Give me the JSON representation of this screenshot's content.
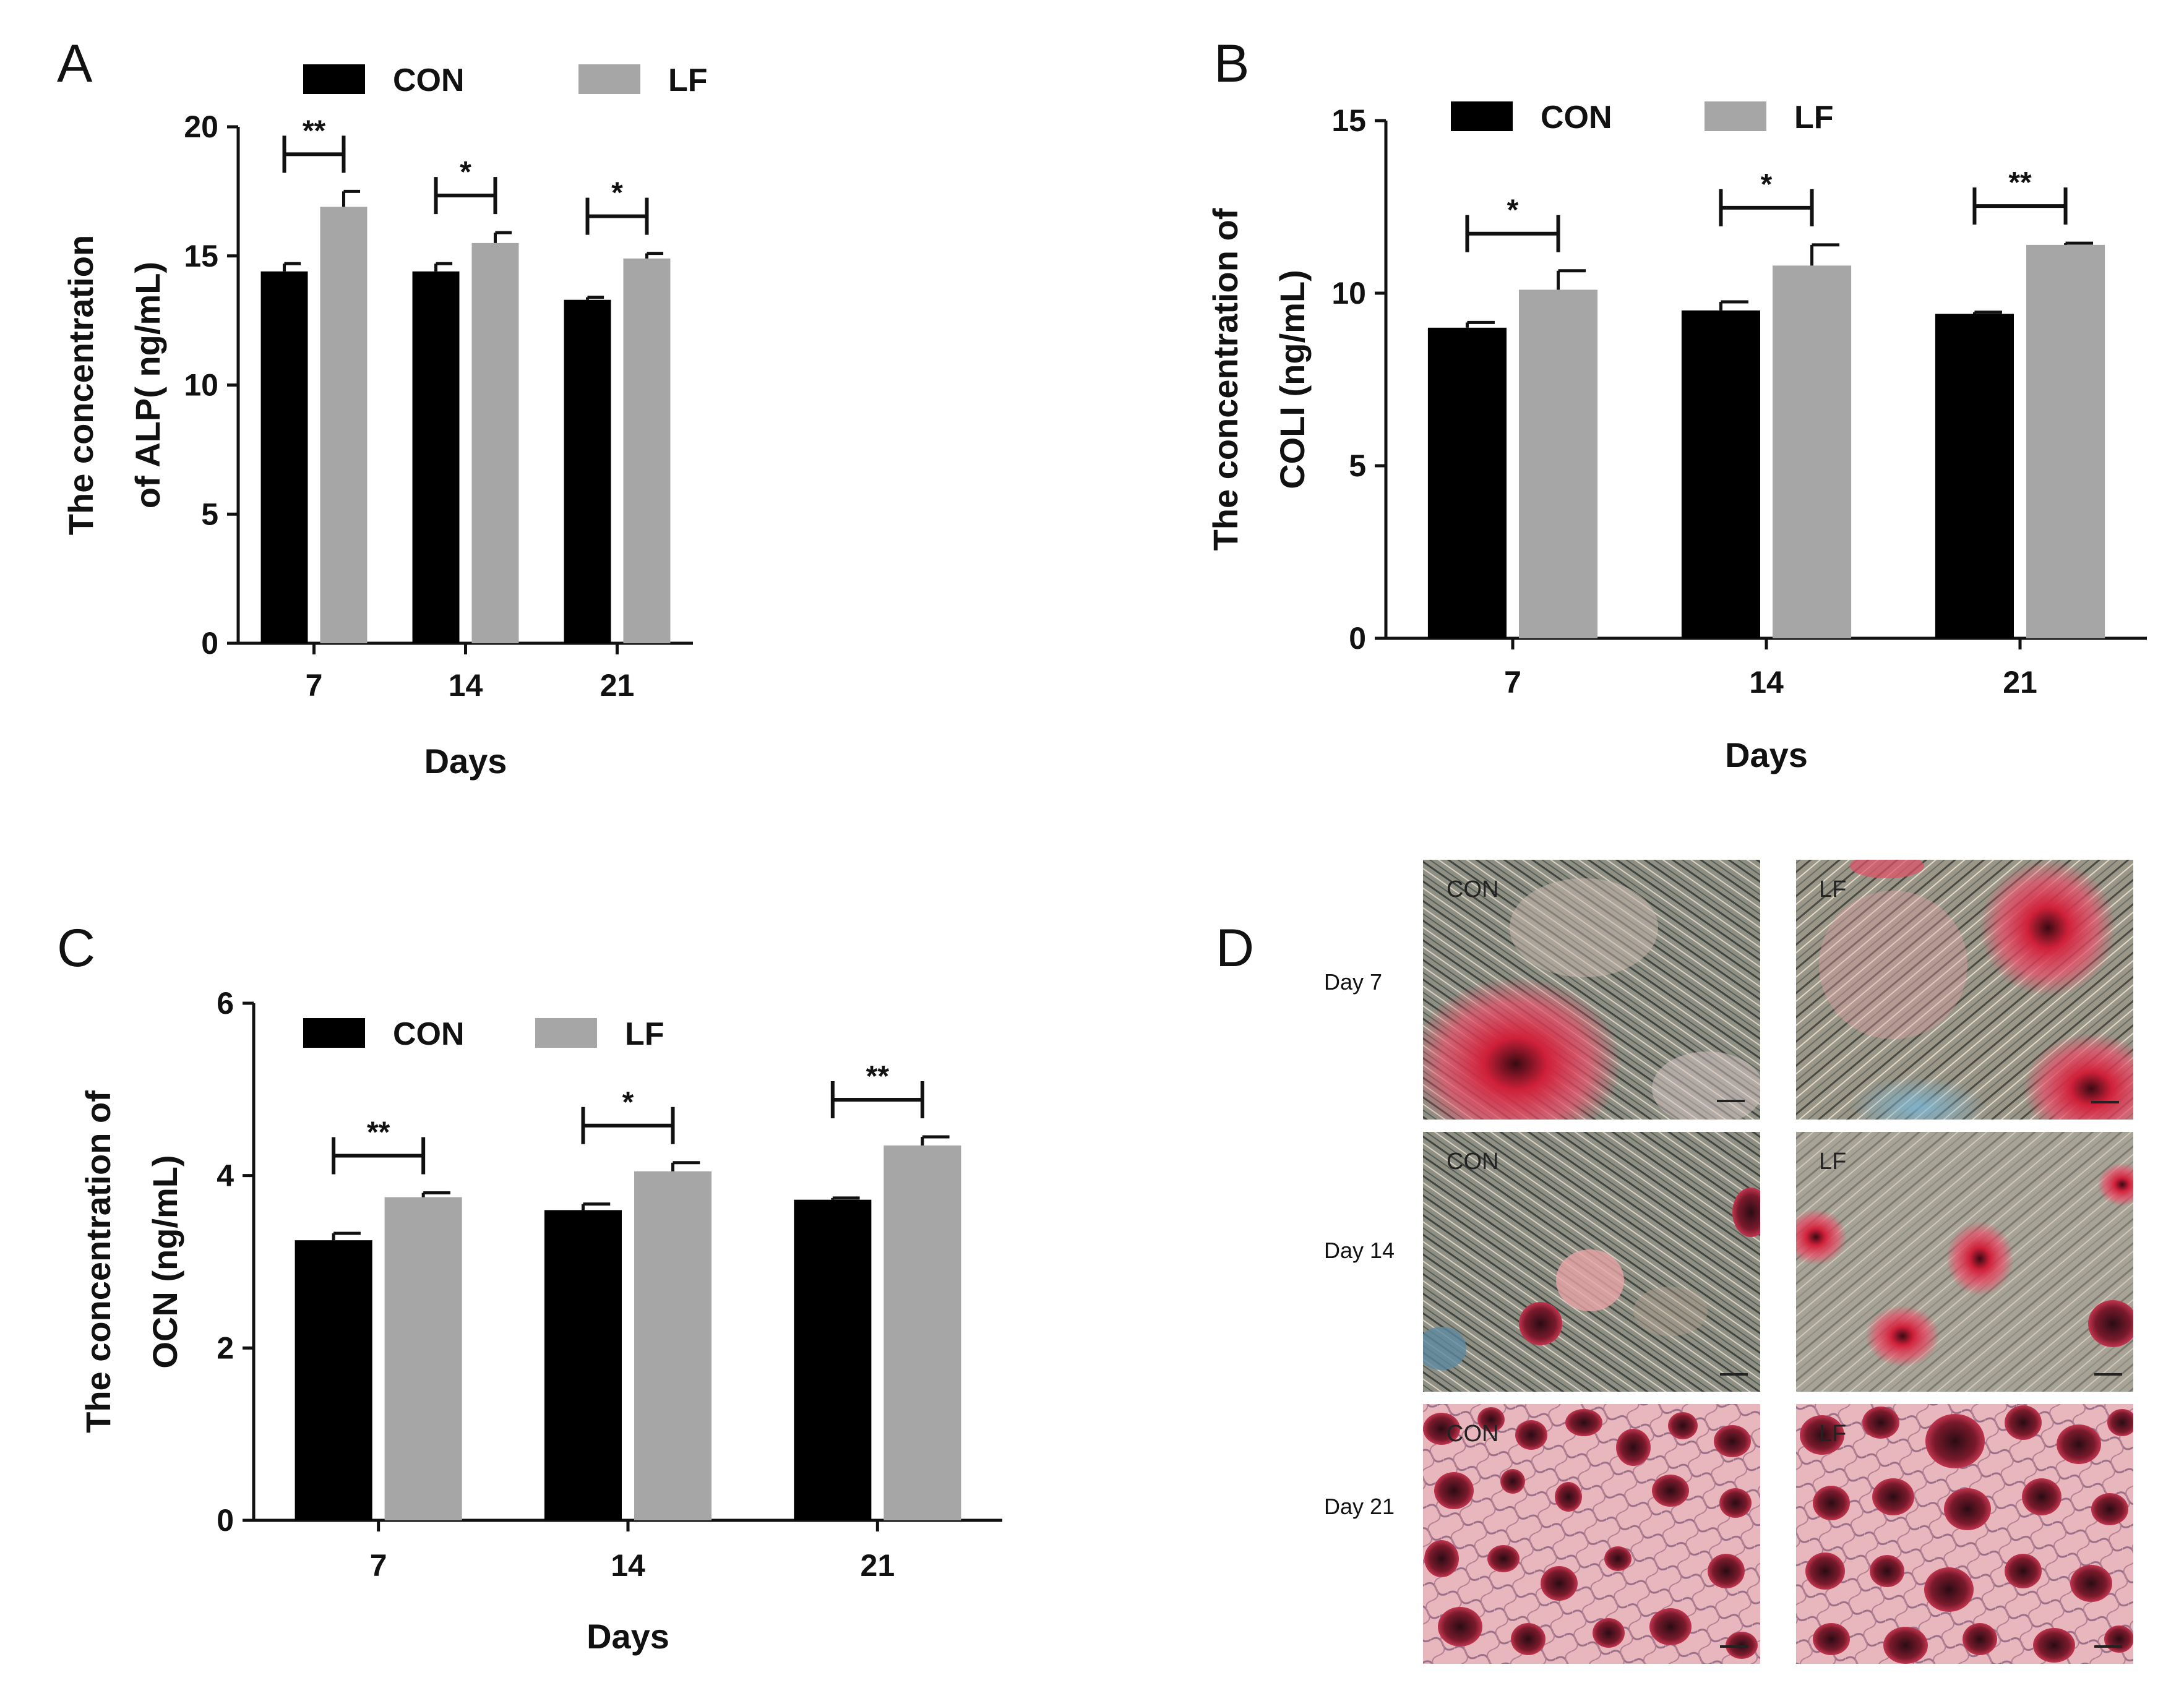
{
  "colors": {
    "con": "#000000",
    "lf": "#a6a6a6"
  },
  "chart_data": [
    {
      "panel": "A",
      "type": "bar",
      "categories": [
        "7",
        "14",
        "21"
      ],
      "xlabel": "Days",
      "ylabel": [
        "The concentration",
        "of ALP( ng/mL)"
      ],
      "ylim": [
        0,
        20
      ],
      "yticks": [
        "0",
        "5",
        "10",
        "15",
        "20"
      ],
      "series": [
        {
          "name": "CON",
          "values": [
            14.4,
            14.4,
            13.3
          ],
          "errors": [
            0.3,
            0.3,
            0.1
          ]
        },
        {
          "name": "LF",
          "values": [
            16.9,
            15.5,
            14.9
          ],
          "errors": [
            0.6,
            0.4,
            0.2
          ]
        }
      ],
      "significance": [
        "**",
        "*",
        "*"
      ],
      "legend": "top"
    },
    {
      "panel": "B",
      "type": "bar",
      "categories": [
        "7",
        "14",
        "21"
      ],
      "xlabel": "Days",
      "ylabel": [
        "The concentration of",
        "COLI (ng/mL)"
      ],
      "ylim": [
        0,
        15
      ],
      "yticks": [
        "0",
        "5",
        "10",
        "15"
      ],
      "series": [
        {
          "name": "CON",
          "values": [
            9.0,
            9.5,
            9.4
          ],
          "errors": [
            0.15,
            0.25,
            0.05
          ]
        },
        {
          "name": "LF",
          "values": [
            10.1,
            10.8,
            11.4
          ],
          "errors": [
            0.55,
            0.6,
            0.05
          ]
        }
      ],
      "significance": [
        "*",
        "*",
        "**"
      ],
      "legend": "top"
    },
    {
      "panel": "C",
      "type": "bar",
      "categories": [
        "7",
        "14",
        "21"
      ],
      "xlabel": "Days",
      "ylabel": [
        "The concentration of",
        "OCN (ng/mL)"
      ],
      "ylim": [
        0,
        6
      ],
      "yticks": [
        "0",
        "2",
        "4",
        "6"
      ],
      "series": [
        {
          "name": "CON",
          "values": [
            3.25,
            3.6,
            3.72
          ],
          "errors": [
            0.08,
            0.07,
            0.02
          ]
        },
        {
          "name": "LF",
          "values": [
            3.75,
            4.05,
            4.35
          ],
          "errors": [
            0.05,
            0.1,
            0.1
          ]
        }
      ],
      "significance": [
        "**",
        "*",
        "**"
      ],
      "legend": "top"
    }
  ],
  "panel_d": {
    "letter": "D",
    "rows": [
      "Day 7",
      "Day 14",
      "Day 21"
    ],
    "columns": [
      "CON",
      "LF"
    ]
  }
}
